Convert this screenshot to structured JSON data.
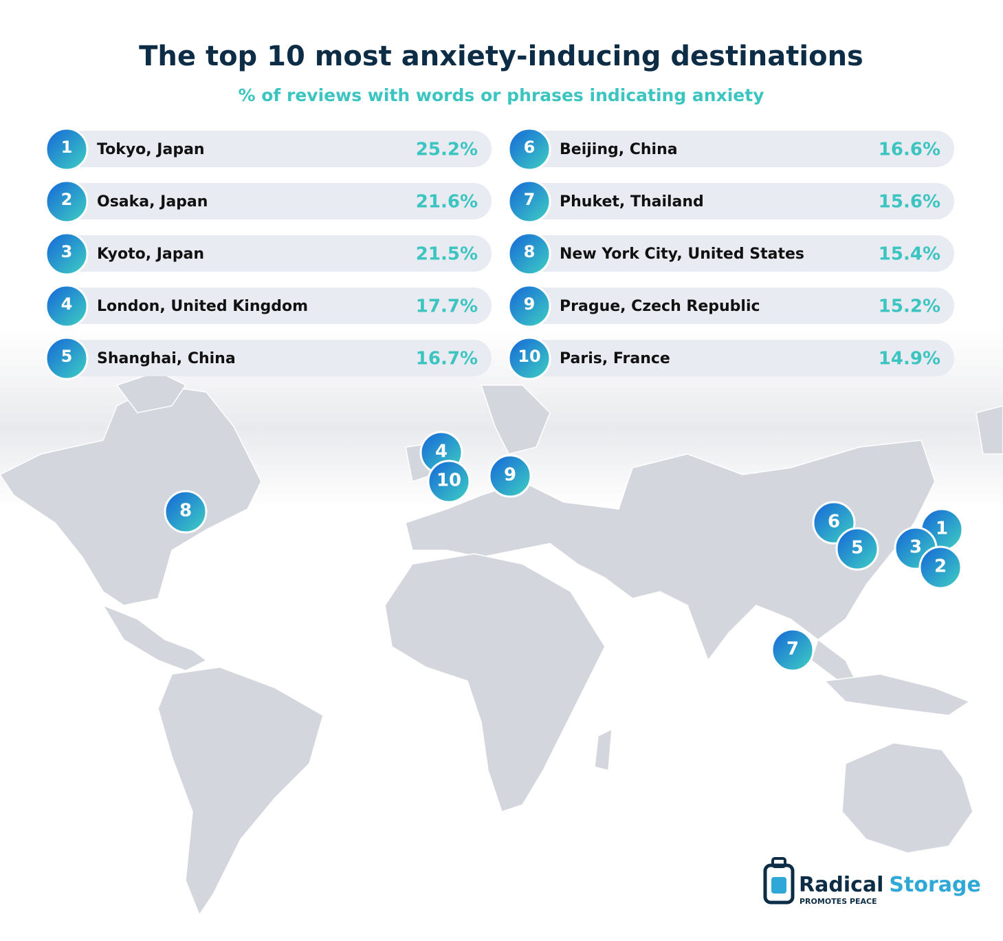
{
  "title": "The top 10 most anxiety-inducing destinations",
  "subtitle": "% of reviews with words or phrases indicating anxiety",
  "items": [
    {
      "rank": "1",
      "name": "Tokyo, Japan",
      "value": "25.2%"
    },
    {
      "rank": "2",
      "name": "Osaka, Japan",
      "value": "21.6%"
    },
    {
      "rank": "3",
      "name": "Kyoto, Japan",
      "value": "21.5%"
    },
    {
      "rank": "4",
      "name": "London, United Kingdom",
      "value": "17.7%"
    },
    {
      "rank": "5",
      "name": "Shanghai, China",
      "value": "16.7%"
    },
    {
      "rank": "6",
      "name": "Beijing, China",
      "value": "16.6%"
    },
    {
      "rank": "7",
      "name": "Phuket, Thailand",
      "value": "15.6%"
    },
    {
      "rank": "8",
      "name": "New York City, United States",
      "value": "15.4%"
    },
    {
      "rank": "9",
      "name": "Prague, Czech Republic",
      "value": "15.2%"
    },
    {
      "rank": "10",
      "name": "Paris, France",
      "value": "14.9%"
    }
  ],
  "logo": {
    "words": [
      "Radical",
      "Storage"
    ],
    "tagline": "PROMOTES PEACE"
  }
}
